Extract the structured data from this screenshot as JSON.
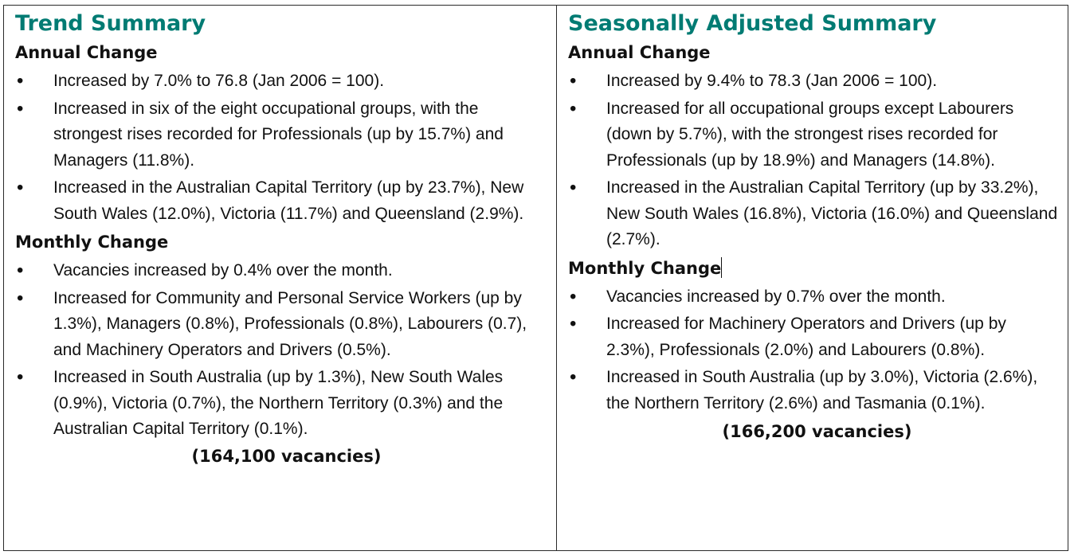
{
  "trend": {
    "title": "Trend Summary",
    "annual_heading": "Annual Change",
    "annual_items": [
      "Increased by 7.0% to 76.8 (Jan 2006 = 100).",
      "Increased in six of the eight occupational groups, with the strongest rises recorded for Professionals (up by 15.7%) and Managers (11.8%).",
      "Increased in the Australian Capital Territory (up by 23.7%), New South Wales (12.0%), Victoria (11.7%) and Queensland (2.9%)."
    ],
    "monthly_heading": "Monthly Change",
    "monthly_items": [
      "Vacancies increased by 0.4% over the month.",
      "Increased for Community and Personal Service Workers (up by 1.3%), Managers (0.8%), Professionals (0.8%), Labourers (0.7), and Machinery Operators and Drivers (0.5%).",
      "Increased in South Australia (up by 1.3%), New South Wales (0.9%), Victoria (0.7%), the Northern Territory (0.3%) and the Australian Capital Territory (0.1%)."
    ],
    "total": "(164,100 vacancies)"
  },
  "seasonal": {
    "title": "Seasonally Adjusted Summary",
    "annual_heading": "Annual Change",
    "annual_items": [
      "Increased by 9.4% to 78.3 (Jan 2006 = 100).",
      "Increased for all occupational groups except Labourers (down by 5.7%), with the strongest rises recorded for Professionals (up by 18.9%) and Managers (14.8%).",
      "Increased in the Australian Capital Territory (up by 33.2%), New South Wales (16.8%), Victoria (16.0%) and Queensland (2.7%)."
    ],
    "monthly_heading": "Monthly Change",
    "monthly_items": [
      "Vacancies increased by 0.7% over the month.",
      "Increased for Machinery Operators and Drivers (up by 2.3%), Professionals (2.0%) and Labourers (0.8%).",
      "Increased in South Australia (up by 3.0%), Victoria (2.6%), the Northern Territory (2.6%) and Tasmania (0.1%)."
    ],
    "total": "(166,200 vacancies)"
  },
  "colors": {
    "title": "#007b73",
    "border": "#2a2a2a",
    "text": "#111111"
  }
}
